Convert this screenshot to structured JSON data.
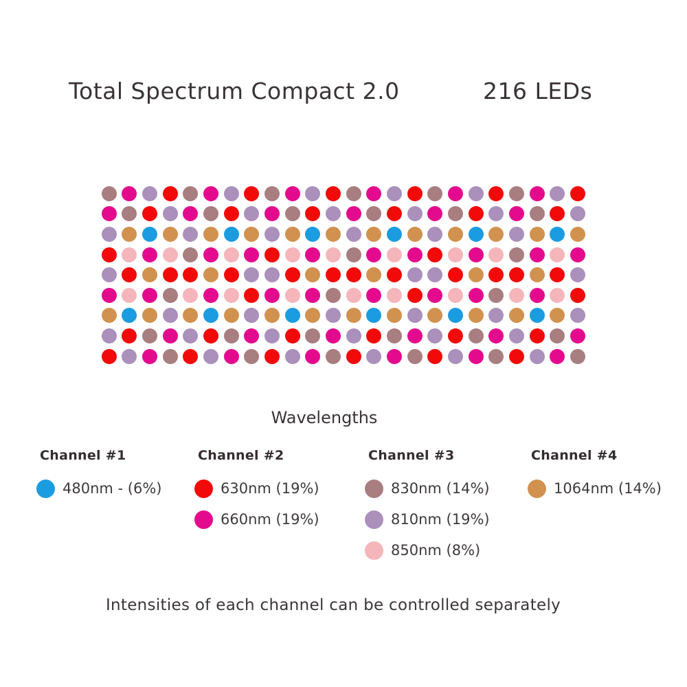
{
  "header": {
    "title": "Total Spectrum Compact 2.0",
    "led_count": "216 LEDs"
  },
  "colors": {
    "480": "#1b9ce0",
    "630": "#f20909",
    "660": "#e40a8d",
    "810": "#aa90bb",
    "830": "#a87e81",
    "850": "#f4b6bb",
    "1064": "#d1924f"
  },
  "led_grid": {
    "rows": 9,
    "cols": 24,
    "total_leds": 216,
    "cells": [
      [
        "830",
        "660",
        "810",
        "630",
        "830",
        "660",
        "810",
        "630",
        "830",
        "660",
        "810",
        "630",
        "830",
        "660",
        "810",
        "630",
        "830",
        "660",
        "810",
        "630",
        "830",
        "660",
        "810",
        "630"
      ],
      [
        "660",
        "830",
        "630",
        "810",
        "660",
        "830",
        "630",
        "810",
        "660",
        "830",
        "630",
        "810",
        "660",
        "830",
        "630",
        "810",
        "660",
        "830",
        "630",
        "810",
        "660",
        "830",
        "630",
        "810"
      ],
      [
        "810",
        "1064",
        "480",
        "1064",
        "810",
        "1064",
        "480",
        "1064",
        "810",
        "1064",
        "480",
        "1064",
        "810",
        "1064",
        "480",
        "1064",
        "810",
        "1064",
        "480",
        "1064",
        "810",
        "1064",
        "480",
        "1064"
      ],
      [
        "630",
        "850",
        "660",
        "850",
        "830",
        "660",
        "850",
        "660",
        "630",
        "850",
        "660",
        "850",
        "830",
        "660",
        "850",
        "660",
        "630",
        "850",
        "660",
        "850",
        "830",
        "660",
        "850",
        "660"
      ],
      [
        "810",
        "630",
        "1064",
        "630",
        "630",
        "1064",
        "630",
        "810",
        "810",
        "630",
        "1064",
        "630",
        "630",
        "1064",
        "630",
        "810",
        "810",
        "630",
        "1064",
        "630",
        "630",
        "1064",
        "630",
        "810"
      ],
      [
        "660",
        "850",
        "660",
        "830",
        "850",
        "660",
        "850",
        "630",
        "660",
        "850",
        "660",
        "830",
        "850",
        "660",
        "850",
        "630",
        "660",
        "850",
        "660",
        "830",
        "850",
        "660",
        "850",
        "630"
      ],
      [
        "1064",
        "480",
        "1064",
        "810",
        "1064",
        "480",
        "1064",
        "810",
        "1064",
        "480",
        "1064",
        "810",
        "1064",
        "480",
        "1064",
        "810",
        "1064",
        "480",
        "1064",
        "810",
        "1064",
        "480",
        "1064",
        "810"
      ],
      [
        "810",
        "630",
        "830",
        "660",
        "810",
        "630",
        "830",
        "660",
        "810",
        "630",
        "830",
        "660",
        "810",
        "630",
        "830",
        "660",
        "810",
        "630",
        "830",
        "660",
        "810",
        "630",
        "830",
        "660"
      ],
      [
        "630",
        "810",
        "660",
        "830",
        "630",
        "810",
        "660",
        "830",
        "630",
        "810",
        "660",
        "830",
        "630",
        "810",
        "660",
        "830",
        "630",
        "810",
        "660",
        "830",
        "630",
        "810",
        "660",
        "830"
      ]
    ]
  },
  "legend": {
    "title": "Wavelengths",
    "channels": [
      {
        "name": "Channel #1",
        "items": [
          {
            "wavelength": "480",
            "label": "480nm - (6%)"
          }
        ]
      },
      {
        "name": "Channel #2",
        "items": [
          {
            "wavelength": "630",
            "label": "630nm (19%)"
          },
          {
            "wavelength": "660",
            "label": "660nm (19%)"
          }
        ]
      },
      {
        "name": "Channel #3",
        "items": [
          {
            "wavelength": "830",
            "label": "830nm (14%)"
          },
          {
            "wavelength": "810",
            "label": "810nm (19%)"
          },
          {
            "wavelength": "850",
            "label": "850nm (8%)"
          }
        ]
      },
      {
        "name": "Channel #4",
        "items": [
          {
            "wavelength": "1064",
            "label": "1064nm (14%)"
          }
        ]
      }
    ]
  },
  "footer": {
    "note": "Intensities of each channel can be controlled separately"
  }
}
